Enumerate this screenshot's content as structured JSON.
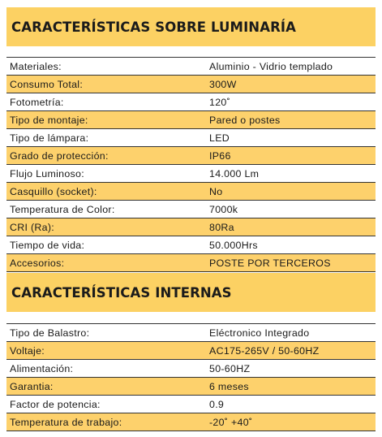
{
  "luminaria": {
    "title": "CARACTERÍSTICAS SOBRE LUMINARÍA",
    "rows": [
      {
        "k": "Materiales:",
        "v": "Aluminio - Vidrio templado"
      },
      {
        "k": "Consumo Total:",
        "v": "300W"
      },
      {
        "k": "Fotometría:",
        "v": "120˚"
      },
      {
        "k": "Tipo de montaje:",
        "v": "Pared o postes"
      },
      {
        "k": "Tipo de lámpara:",
        "v": "LED"
      },
      {
        "k": "Grado de protección:",
        "v": "IP66"
      },
      {
        "k": "Flujo Luminoso:",
        "v": "14.000 Lm"
      },
      {
        "k": "Casquillo (socket):",
        "v": "No"
      },
      {
        "k": "Temperatura de Color:",
        "v": "7000k"
      },
      {
        "k": "CRI (Ra):",
        "v": "80Ra"
      },
      {
        "k": "Tiempo de vida:",
        "v": "50.000Hrs"
      },
      {
        "k": "Accesorios:",
        "v": "POSTE POR TERCEROS"
      }
    ]
  },
  "internas": {
    "title": "CARACTERÍSTICAS INTERNAS",
    "rows": [
      {
        "k": "Tipo de Balastro:",
        "v": "Eléctronico Integrado"
      },
      {
        "k": "Voltaje:",
        "v": "AC175-265V / 50-60HZ"
      },
      {
        "k": "Alimentación:",
        "v": "50-60HZ"
      },
      {
        "k": "Garantia:",
        "v": "6 meses"
      },
      {
        "k": "Factor de potencia:",
        "v": "0.9"
      },
      {
        "k": "Temperatura de trabajo:",
        "v": "-20˚ +40˚"
      }
    ]
  }
}
